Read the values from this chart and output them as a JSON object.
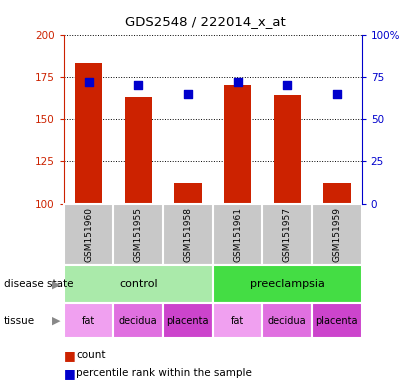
{
  "title": "GDS2548 / 222014_x_at",
  "samples": [
    "GSM151960",
    "GSM151955",
    "GSM151958",
    "GSM151961",
    "GSM151957",
    "GSM151959"
  ],
  "counts": [
    183,
    163,
    112,
    170,
    164,
    112
  ],
  "percentiles": [
    72,
    70,
    65,
    72,
    70,
    65
  ],
  "ylim_left": [
    100,
    200
  ],
  "ylim_right": [
    0,
    100
  ],
  "yticks_left": [
    100,
    125,
    150,
    175,
    200
  ],
  "yticks_right": [
    0,
    25,
    50,
    75,
    100
  ],
  "bar_color": "#cc2200",
  "dot_color": "#0000cc",
  "disease_state": [
    {
      "label": "control",
      "span": [
        0,
        3
      ],
      "color": "#aaeaaa"
    },
    {
      "label": "preeclampsia",
      "span": [
        3,
        6
      ],
      "color": "#44dd44"
    }
  ],
  "tissue": [
    {
      "label": "fat",
      "span": [
        0,
        1
      ],
      "color": "#f0a0f0"
    },
    {
      "label": "decidua",
      "span": [
        1,
        2
      ],
      "color": "#e070e0"
    },
    {
      "label": "placenta",
      "span": [
        2,
        3
      ],
      "color": "#cc44cc"
    },
    {
      "label": "fat",
      "span": [
        3,
        4
      ],
      "color": "#f0a0f0"
    },
    {
      "label": "decidua",
      "span": [
        4,
        5
      ],
      "color": "#e070e0"
    },
    {
      "label": "placenta",
      "span": [
        5,
        6
      ],
      "color": "#cc44cc"
    }
  ],
  "sample_bg_color": "#c8c8c8",
  "legend_count_label": "count",
  "legend_percentile_label": "percentile rank within the sample",
  "disease_state_label": "disease state",
  "tissue_label": "tissue",
  "left_axis_color": "#cc2200",
  "right_axis_color": "#0000cc",
  "arrow_color": "#888888",
  "fig_width": 4.11,
  "fig_height": 3.84,
  "dpi": 100
}
